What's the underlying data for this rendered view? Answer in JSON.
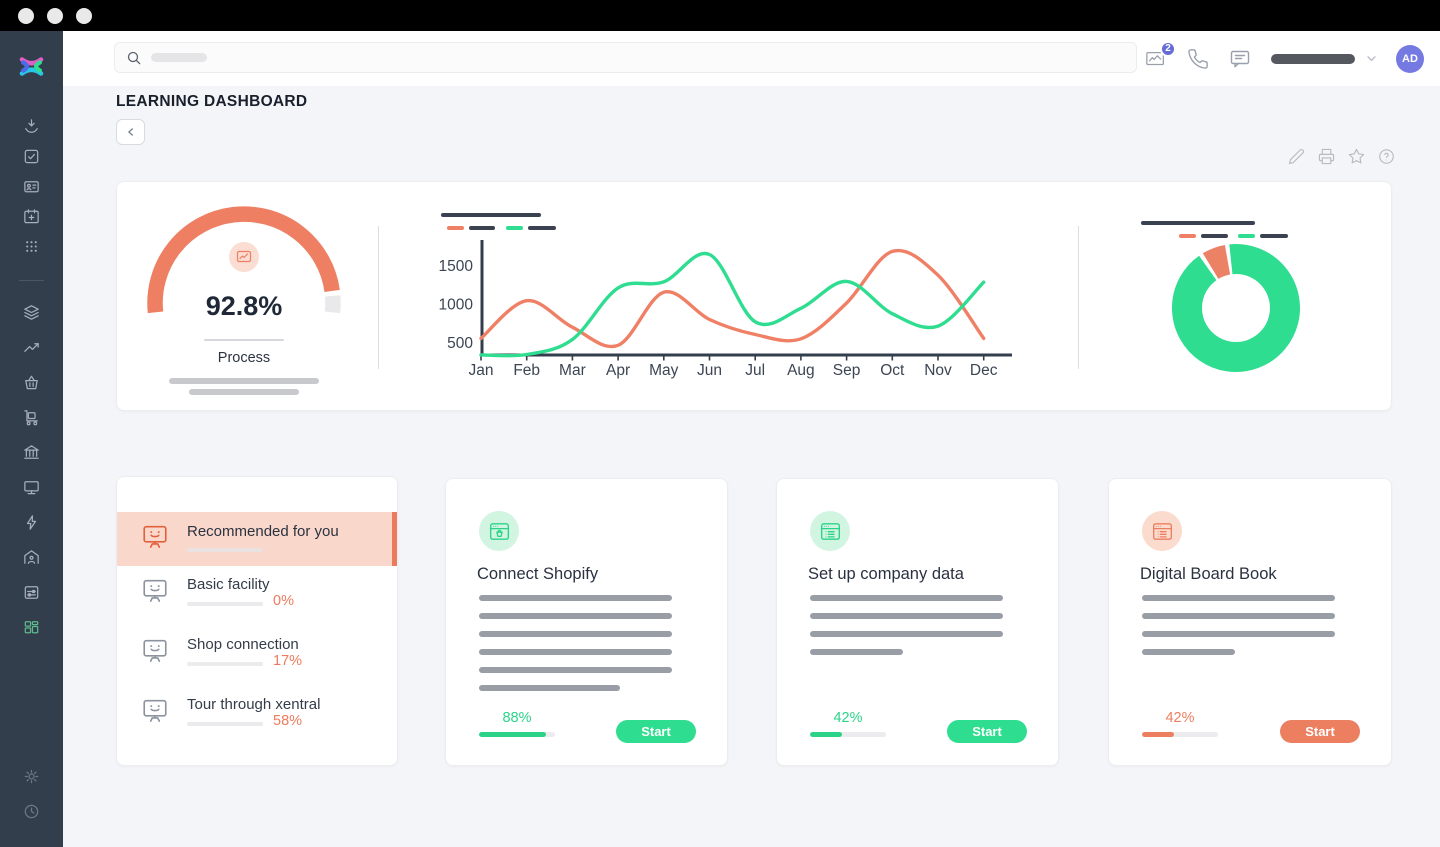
{
  "window": {
    "controls": [
      "dot",
      "dot",
      "dot"
    ]
  },
  "header": {
    "search_icon": "search-icon",
    "icons": [
      "news-icon",
      "phone-icon",
      "chat-icon"
    ],
    "notifications_badge": "2",
    "user_initials": "AD"
  },
  "sidebar": {
    "logo": "xentral-logo",
    "items": [
      {
        "icon": "import-inbox-icon"
      },
      {
        "icon": "tasks-icon"
      },
      {
        "icon": "contacts-icon"
      },
      {
        "icon": "calendar-icon"
      },
      {
        "icon": "apps-grid-icon"
      },
      {
        "icon": "divider"
      },
      {
        "icon": "layers-icon"
      },
      {
        "icon": "trending-up-icon"
      },
      {
        "icon": "basket-icon"
      },
      {
        "icon": "logistics-cart-icon"
      },
      {
        "icon": "bank-icon"
      },
      {
        "icon": "monitor-icon"
      },
      {
        "icon": "lightning-icon"
      },
      {
        "icon": "warehouse-icon"
      },
      {
        "icon": "machine-icon"
      },
      {
        "icon": "dashboard-icon",
        "active": true
      },
      {
        "icon": "settings-gear-icon",
        "muted": true
      },
      {
        "icon": "clock-icon",
        "muted": true
      }
    ]
  },
  "page": {
    "title": "LEARNING DASHBOARD",
    "actions": [
      "edit-icon",
      "print-icon",
      "favorite-icon",
      "help-icon"
    ]
  },
  "chart_data": [
    {
      "type": "gauge",
      "value": 92.8,
      "value_text": "92.8%",
      "max": 100,
      "label": "Process",
      "color": "#ee7f63",
      "track_color": "#e9e9ec",
      "start_angle": -96,
      "end_angle": 96
    },
    {
      "type": "line",
      "x": [
        "Jan",
        "Feb",
        "Mar",
        "Apr",
        "May",
        "Jun",
        "Jul",
        "Aug",
        "Sep",
        "Oct",
        "Nov",
        "Dec"
      ],
      "yticks": [
        500,
        1000,
        1500
      ],
      "ylim": [
        344,
        1700
      ],
      "grid": false,
      "legend_position": "top-left-redacted",
      "axis_color": "#333e4d",
      "series": [
        {
          "name": "orange-series",
          "color": "#ef8065",
          "values": [
            560,
            1050,
            705,
            470,
            1160,
            805,
            610,
            555,
            1020,
            1690,
            1380,
            560
          ]
        },
        {
          "name": "green-series",
          "color": "#2edd90",
          "values": [
            345,
            350,
            545,
            1215,
            1295,
            1650,
            775,
            950,
            1300,
            880,
            720,
            1290
          ]
        }
      ]
    },
    {
      "type": "donut",
      "start_angle": -8,
      "gap_degrees": 4,
      "slices": [
        {
          "name": "green-share",
          "value": 93,
          "color": "#2edd90"
        },
        {
          "name": "orange-share",
          "value": 7,
          "color": "#ec8265"
        }
      ]
    }
  ],
  "learning": {
    "recommended": {
      "title": "Recommended for you",
      "items": [
        {
          "label": "Basic facility",
          "progress": 0,
          "progress_text": "0%"
        },
        {
          "label": "Shop connection",
          "progress": 17,
          "progress_text": "17%"
        },
        {
          "label": "Tour through xentral",
          "progress": 58,
          "progress_text": "58%"
        }
      ]
    },
    "courses": [
      {
        "title": "Connect Shopify",
        "icon": "shop-window-icon",
        "accent": "green",
        "desc_lines": 6,
        "progress": 88,
        "progress_text": "88%",
        "action": "Start"
      },
      {
        "title": "Set up company data",
        "icon": "list-window-icon",
        "accent": "green",
        "desc_lines": 4,
        "progress": 42,
        "progress_text": "42%",
        "action": "Start"
      },
      {
        "title": "Digital Board Book",
        "icon": "list-window-icon",
        "accent": "salmon",
        "desc_lines": 4,
        "progress": 42,
        "progress_text": "42%",
        "action": "Start"
      }
    ]
  }
}
